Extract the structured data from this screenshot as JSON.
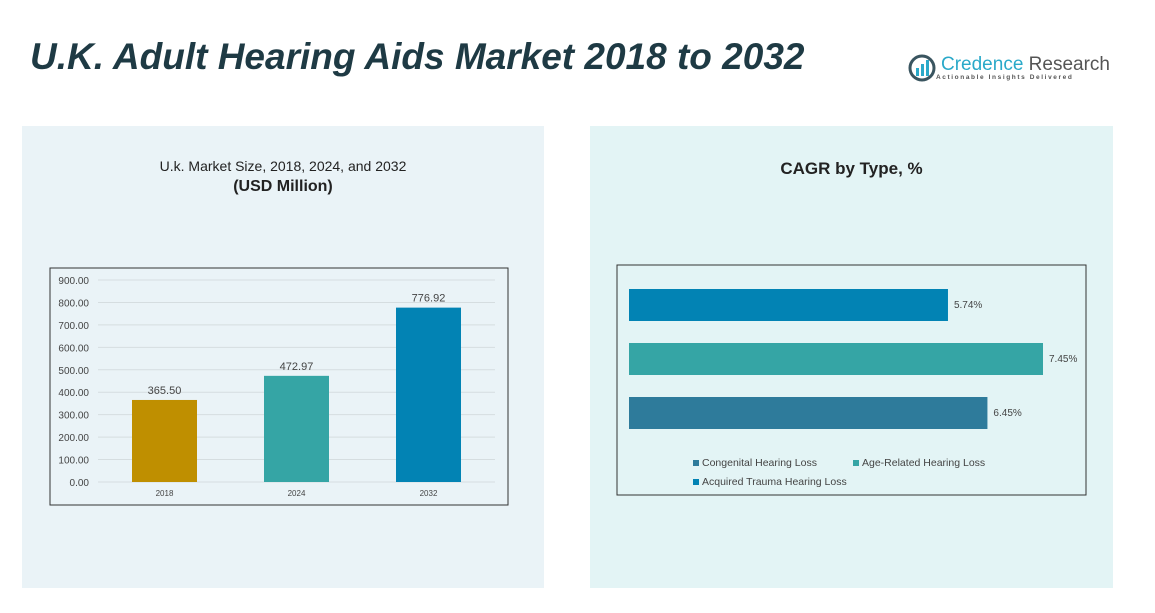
{
  "title": "U.K. Adult Hearing Aids Market 2018 to 2032",
  "logo": {
    "name_a": "Credence",
    "name_b": "Research",
    "tagline": "Actionable Insights Delivered"
  },
  "chart_data": [
    {
      "type": "bar",
      "title": "U.k. Market Size, 2018, 2024, and 2032",
      "subtitle": "(USD Million)",
      "categories": [
        "2018",
        "2024",
        "2032"
      ],
      "values": [
        365.5,
        472.97,
        776.92
      ],
      "labels": [
        "365.50",
        "472.97",
        "776.92"
      ],
      "colors": [
        "#bf8f00",
        "#35a5a5",
        "#0283b4"
      ],
      "yticks": [
        "0.00",
        "100.00",
        "200.00",
        "300.00",
        "400.00",
        "500.00",
        "600.00",
        "700.00",
        "800.00",
        "900.00"
      ],
      "ylim": [
        0,
        900
      ],
      "grid": true
    },
    {
      "type": "bar",
      "orientation": "horizontal",
      "title": "CAGR by Type, %",
      "series": [
        {
          "name": "Acquired Trauma Hearing Loss",
          "value": 5.74,
          "label": "5.74%",
          "color": "#0283b4"
        },
        {
          "name": "Age-Related Hearing Loss",
          "value": 7.45,
          "label": "7.45%",
          "color": "#35a5a5"
        },
        {
          "name": "Congenital Hearing Loss",
          "value": 6.45,
          "label": "6.45%",
          "color": "#2e7b9b"
        }
      ],
      "legend": [
        "Congenital Hearing Loss",
        "Age-Related Hearing Loss",
        "Acquired Trauma Hearing Loss"
      ],
      "legend_position": "bottom"
    }
  ]
}
